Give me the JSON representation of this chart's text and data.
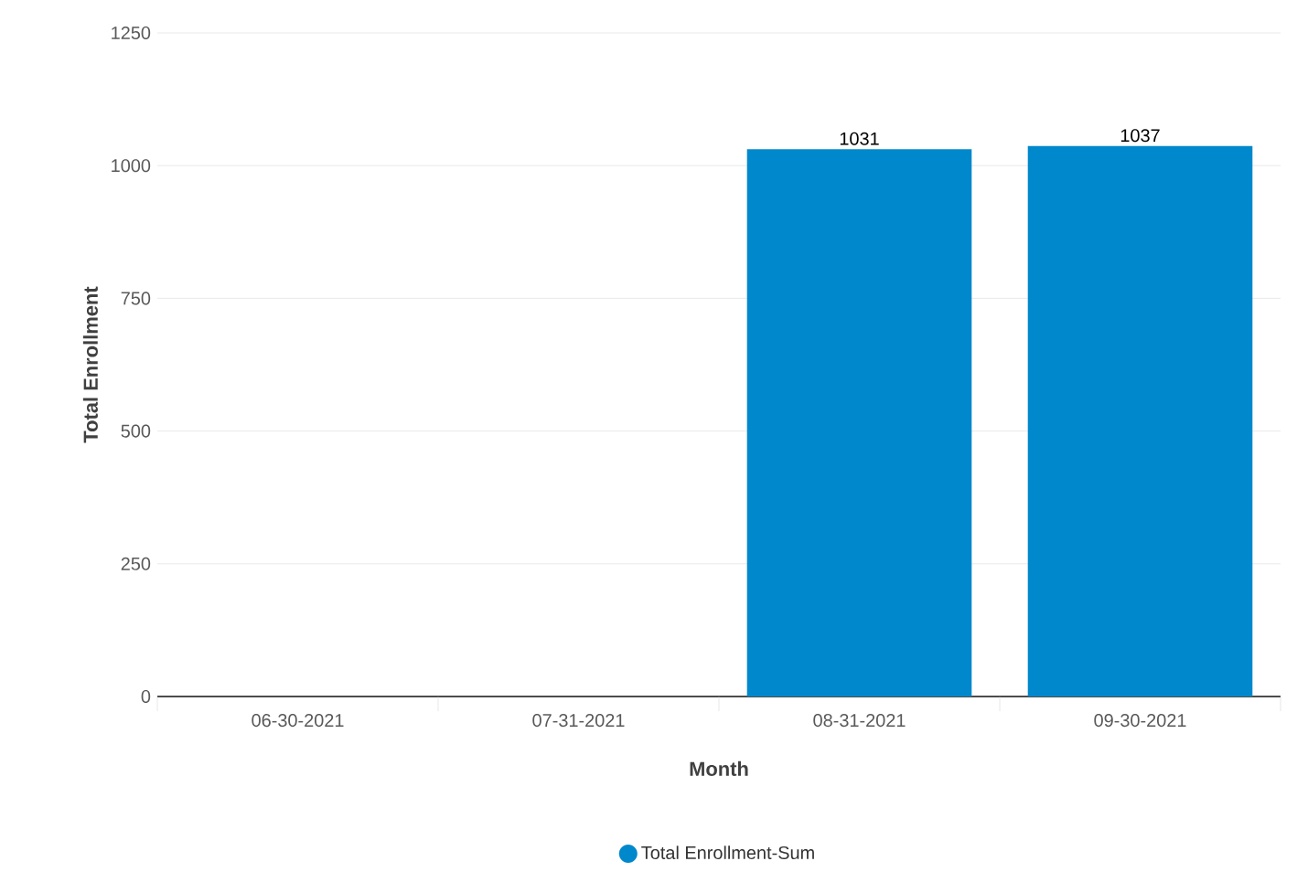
{
  "chart_data": {
    "type": "bar",
    "xlabel": "Month",
    "ylabel": "Total Enrollment",
    "categories": [
      "06-30-2021",
      "07-31-2021",
      "08-31-2021",
      "09-30-2021"
    ],
    "series": [
      {
        "name": "Total Enrollment-Sum",
        "color": "#0088cc",
        "values": [
          null,
          null,
          1031,
          1037
        ]
      }
    ],
    "ylim": [
      0,
      1250
    ],
    "yticks": [
      0,
      250,
      500,
      750,
      1000,
      1250
    ],
    "grid": "y",
    "legend": "bottom",
    "data_labels": true
  }
}
